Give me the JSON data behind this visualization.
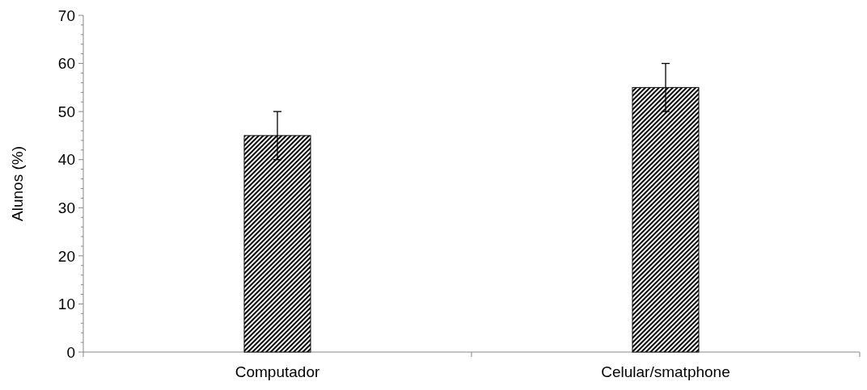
{
  "chart_data": {
    "type": "bar",
    "ylabel": "Alunos (%)",
    "categories": [
      "Computador",
      "Celular/smatphone"
    ],
    "values": [
      45,
      55
    ],
    "errors": [
      5,
      5
    ],
    "color": "#000000",
    "ylim": [
      0,
      70
    ],
    "yticks": [
      0,
      {
        "value": 2,
        "label": null
      },
      {
        "value": 4,
        "label": null
      },
      {
        "value": 6,
        "label": null
      },
      {
        "value": 8,
        "label": null
      },
      10,
      {
        "value": 12,
        "label": null
      },
      {
        "value": 14,
        "label": null
      },
      {
        "value": 16,
        "label": null
      },
      {
        "value": 18,
        "label": null
      },
      20,
      {
        "value": 22,
        "label": null
      },
      {
        "value": 24,
        "label": null
      },
      {
        "value": 26,
        "label": null
      },
      {
        "value": 28,
        "label": null
      },
      30,
      {
        "value": 32,
        "label": null
      },
      {
        "value": 34,
        "label": null
      },
      {
        "value": 36,
        "label": null
      },
      {
        "value": 38,
        "label": null
      },
      40,
      {
        "value": 42,
        "label": null
      },
      {
        "value": 44,
        "label": null
      },
      {
        "value": 46,
        "label": null
      },
      {
        "value": 48,
        "label": null
      },
      50,
      {
        "value": 52,
        "label": null
      },
      {
        "value": 54,
        "label": null
      },
      {
        "value": 56,
        "label": null
      },
      {
        "value": 58,
        "label": null
      },
      60,
      {
        "value": 62,
        "label": null
      },
      {
        "value": 64,
        "label": null
      },
      {
        "value": 66,
        "label": null
      },
      {
        "value": 68,
        "label": null
      },
      70
    ],
    "grid": false
  }
}
